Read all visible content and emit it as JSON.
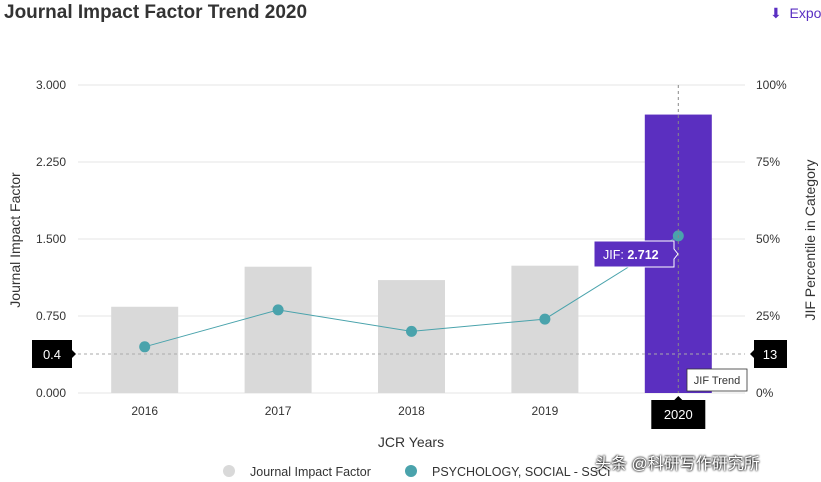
{
  "header": {
    "title": "Journal Impact Factor Trend 2020",
    "export_label": "Expo",
    "export_icon": "download-icon"
  },
  "chart_data": {
    "type": "bar+line",
    "title": "Journal Impact Factor Trend 2020",
    "xlabel": "JCR Years",
    "ylabel": "Journal Impact Factor",
    "y2label": "JIF Percentile in Category",
    "categories": [
      "2016",
      "2017",
      "2018",
      "2019",
      "2020"
    ],
    "ylim": [
      0,
      3
    ],
    "yticks": [
      "0.000",
      "0.750",
      "1.500",
      "2.250",
      "3.000"
    ],
    "y2lim": [
      0,
      100
    ],
    "y2ticks": [
      "0%",
      "25%",
      "50%",
      "75%",
      "100%"
    ],
    "grid": true,
    "legend_position": "bottom",
    "series": [
      {
        "name": "Journal Impact Factor",
        "type": "bar",
        "values": [
          0.84,
          1.23,
          1.1,
          1.24,
          2.712
        ],
        "color": "#d9d9d9",
        "highlight_color": "#5b2fc0"
      },
      {
        "name": "PSYCHOLOGY, SOCIAL - SSCI",
        "type": "line",
        "axis": "right",
        "values": [
          15,
          27,
          20,
          24,
          51
        ],
        "color": "#4aa3ac"
      }
    ],
    "tooltip": {
      "label": "JIF: ",
      "value": "2.712"
    },
    "crosshair": {
      "x_label": "2020",
      "y_left_label": "0.4",
      "y_right_label": "13",
      "hover_label": "JIF Trend"
    }
  },
  "watermark": "头条 @科研写作研究所"
}
